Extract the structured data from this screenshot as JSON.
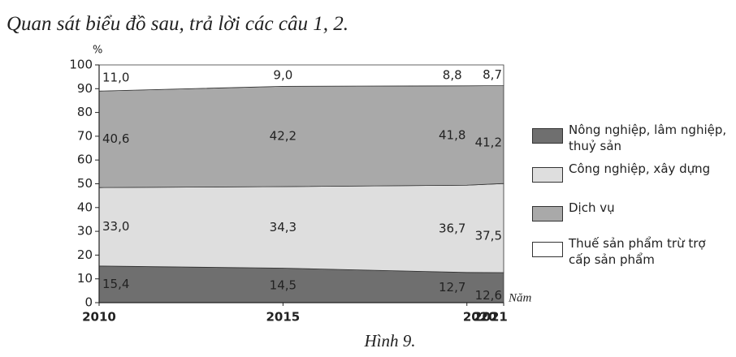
{
  "heading": "Quan sát biểu đồ sau, trả lời các câu 1, 2.",
  "chart_data": {
    "type": "stacked-area",
    "y_label": "%",
    "x_label": "Năm",
    "caption": "Hình 9.",
    "x": [
      2010,
      2015,
      2020,
      2021
    ],
    "xlim": [
      2010,
      2021
    ],
    "xticks": [
      2010,
      2015,
      2020,
      2021
    ],
    "ylim": [
      0,
      100
    ],
    "yticks": [
      0,
      10,
      20,
      30,
      40,
      50,
      60,
      70,
      80,
      90,
      100
    ],
    "series": [
      {
        "name": "Nông nghiệp, lâm nghiệp, thuỷ sản",
        "color": "#6f6f6f",
        "values": [
          15.4,
          14.5,
          12.7,
          12.6
        ],
        "value_labels": [
          "15,4",
          "14,5",
          "12,7",
          "12,6"
        ]
      },
      {
        "name": "Công nghiệp, xây dựng",
        "color": "#dedede",
        "values": [
          33.0,
          34.3,
          36.7,
          37.5
        ],
        "value_labels": [
          "33,0",
          "34,3",
          "36,7",
          "37,5"
        ]
      },
      {
        "name": "Dịch vụ",
        "color": "#a9a9a9",
        "values": [
          40.6,
          42.2,
          41.8,
          41.2
        ],
        "value_labels": [
          "40,6",
          "42,2",
          "41,8",
          "41,2"
        ]
      },
      {
        "name": "Thuế sản phẩm trừ trợ cấp sản phẩm",
        "color": "#ffffff",
        "values": [
          11.0,
          9.0,
          8.8,
          8.7
        ],
        "value_labels": [
          "11,0",
          "9,0",
          "8,8",
          "8,7"
        ]
      }
    ]
  }
}
